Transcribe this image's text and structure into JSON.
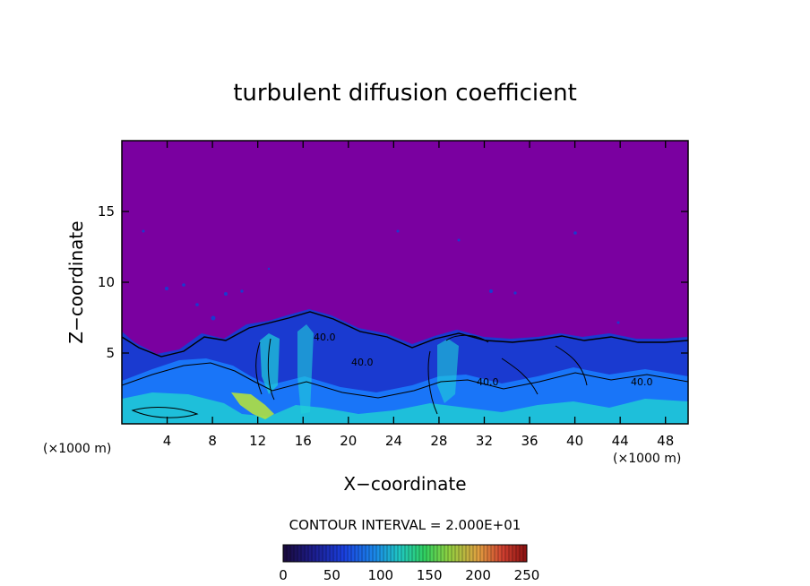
{
  "title": "turbulent diffusion coefficient",
  "chart_data": {
    "type": "heatmap",
    "title": "turbulent diffusion coefficient",
    "xlabel": "X−coordinate",
    "ylabel": "Z−coordinate",
    "x_unit": "(×1000 m)",
    "y_unit": "(×1000 m)",
    "xlim": [
      0,
      50
    ],
    "ylim": [
      0,
      20
    ],
    "x_ticks": [
      4,
      8,
      12,
      16,
      20,
      24,
      28,
      32,
      36,
      40,
      44,
      48
    ],
    "y_ticks": [
      5,
      10,
      15
    ],
    "contour_interval": "CONTOUR INTERVAL = 2.000E+01",
    "contour_labels": [
      "40.0",
      "40.0",
      "40.0",
      "40.0"
    ],
    "colorbar": {
      "range": [
        0,
        250
      ],
      "tick_values": [
        0,
        50,
        100,
        150,
        200,
        250
      ],
      "colors": [
        "#1a0a3a",
        "#1c1c8a",
        "#1a40e0",
        "#1a8ae8",
        "#20c8c0",
        "#30d060",
        "#90d040",
        "#e0a040",
        "#d04030",
        "#8a1010"
      ]
    },
    "field_colors": {
      "background": "#7a00a0",
      "low": "#1a30c8",
      "mid": "#1a80ff",
      "high": "#20d8d0",
      "peak": "#b0e040"
    },
    "grid": false,
    "legend": "none"
  }
}
